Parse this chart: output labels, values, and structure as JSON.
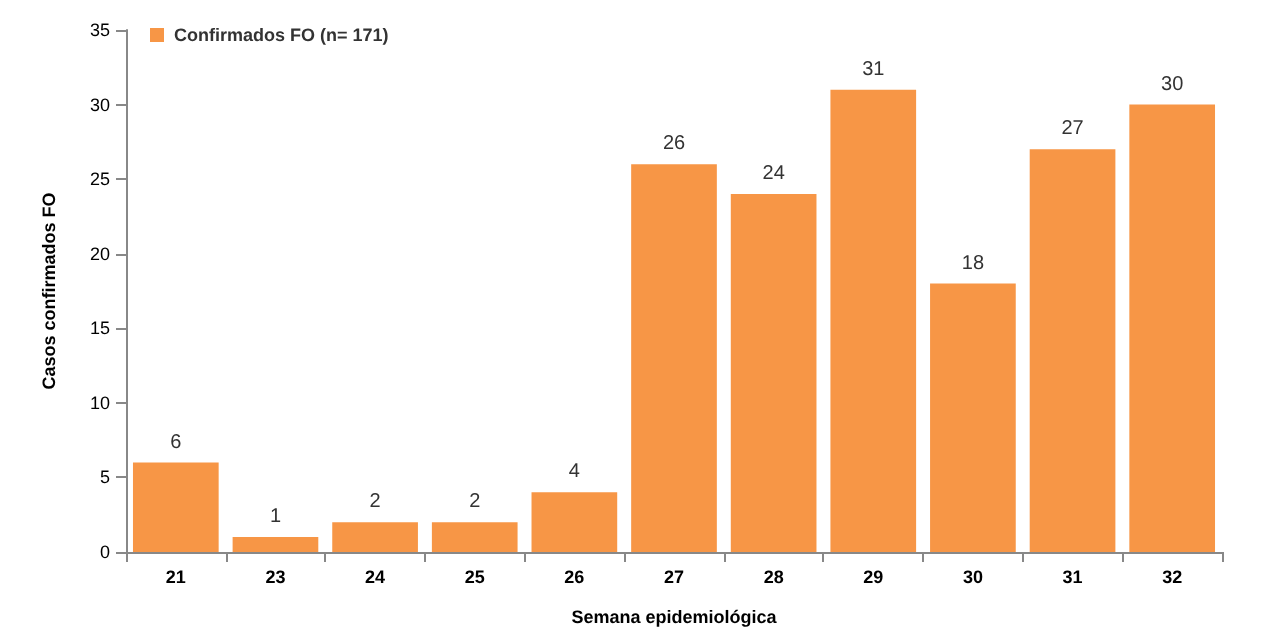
{
  "chart_data": {
    "type": "bar",
    "xlabel": "Semana epidemiológica",
    "ylabel": "Casos confirmados FO",
    "categories": [
      "21",
      "23",
      "24",
      "25",
      "26",
      "27",
      "28",
      "29",
      "30",
      "31",
      "32"
    ],
    "series": [
      {
        "name": "Confirmados FO (n= 171)",
        "color": "#f79646",
        "values": [
          6,
          1,
          2,
          2,
          4,
          26,
          24,
          31,
          18,
          27,
          30
        ]
      }
    ],
    "ylim": [
      0,
      35
    ],
    "yticks": [
      0,
      5,
      10,
      15,
      20,
      25,
      30,
      35
    ],
    "grid": false,
    "legend": "top left",
    "data_labels": true
  }
}
